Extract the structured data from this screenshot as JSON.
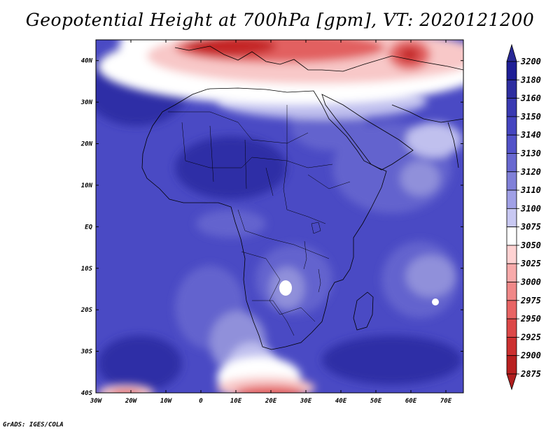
{
  "title": "Geopotential Height at 700hPa [gpm], VT: 2020121200",
  "footer": "GrADS: IGES/COLA",
  "axes": {
    "lon_ticks": [
      "30W",
      "20W",
      "10W",
      "0",
      "10E",
      "20E",
      "30E",
      "40E",
      "50E",
      "60E",
      "70E"
    ],
    "lat_ticks": [
      "40N",
      "30N",
      "20N",
      "10N",
      "EQ",
      "10S",
      "20S",
      "30S",
      "40S"
    ],
    "lon_range": [
      -30,
      75
    ],
    "lat_range": [
      -40,
      45
    ]
  },
  "colorbar": {
    "labels": [
      "3200",
      "3180",
      "3160",
      "3150",
      "3140",
      "3130",
      "3120",
      "3110",
      "3100",
      "3075",
      "3050",
      "3025",
      "3000",
      "2975",
      "2950",
      "2925",
      "2900",
      "2875"
    ],
    "colors": [
      "#1e1e96",
      "#2d2da0",
      "#3a3ab2",
      "#4545c0",
      "#5252c8",
      "#6868d0",
      "#8080d8",
      "#a0a0e6",
      "#c8c8f2",
      "#ffffff",
      "#ffd2d2",
      "#f8aaaa",
      "#f08888",
      "#e86464",
      "#dc4848",
      "#cc3030",
      "#b82020",
      "#a01818"
    ],
    "top_color": "#282896",
    "bottom_color": "#b01e1e"
  },
  "map_colors": {
    "base": "#4a4ac4",
    "deep": "#2e2ea6",
    "mid": "#6464ce",
    "light": "#9090da",
    "pale": "#c0c0ee",
    "white": "#ffffff",
    "pink": "#f8c8c8",
    "red": "#e26060",
    "darkred": "#c42828"
  }
}
